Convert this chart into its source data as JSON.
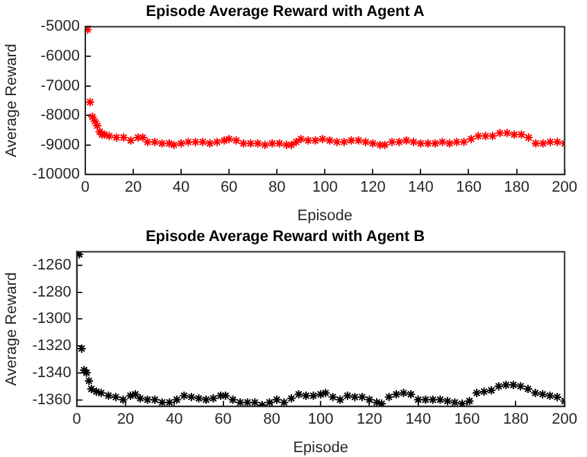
{
  "chart_data": [
    {
      "type": "scatter",
      "title": "Episode Average Reward with Agent A",
      "xlabel": "Episode",
      "ylabel": "Average Reward",
      "xlim": [
        0,
        200
      ],
      "xticks": [
        0,
        20,
        40,
        60,
        80,
        100,
        120,
        140,
        160,
        180,
        200
      ],
      "ylim": [
        -10000,
        -5000
      ],
      "yticks": [
        -10000,
        -9000,
        -8000,
        -7000,
        -6000,
        -5000
      ],
      "grid": false,
      "legend": false,
      "marker": "cross",
      "series": [
        {
          "color": "#ff0000",
          "x": [
            1,
            2,
            3,
            4,
            5,
            6,
            7,
            8,
            10,
            13,
            16,
            19,
            22,
            24,
            26,
            29,
            32,
            35,
            37,
            40,
            43,
            46,
            49,
            52,
            55,
            58,
            60,
            63,
            66,
            69,
            72,
            75,
            78,
            81,
            84,
            86,
            88,
            90,
            93,
            96,
            99,
            102,
            105,
            108,
            111,
            114,
            117,
            120,
            123,
            125,
            128,
            131,
            134,
            137,
            140,
            143,
            146,
            149,
            152,
            155,
            158,
            161,
            164,
            167,
            170,
            173,
            176,
            179,
            182,
            185,
            188,
            191,
            194,
            197,
            200
          ],
          "values": [
            -5100,
            -7550,
            -8050,
            -8200,
            -8350,
            -8550,
            -8650,
            -8650,
            -8700,
            -8750,
            -8750,
            -8850,
            -8750,
            -8750,
            -8900,
            -8900,
            -8950,
            -8950,
            -9000,
            -8950,
            -8900,
            -8900,
            -8900,
            -8950,
            -8900,
            -8850,
            -8800,
            -8850,
            -8950,
            -8950,
            -8950,
            -9000,
            -8950,
            -8950,
            -9000,
            -9000,
            -8900,
            -8800,
            -8850,
            -8850,
            -8800,
            -8850,
            -8900,
            -8900,
            -8850,
            -8850,
            -8900,
            -8950,
            -9000,
            -9000,
            -8900,
            -8900,
            -8850,
            -8900,
            -8950,
            -8950,
            -8950,
            -8900,
            -8950,
            -8900,
            -8900,
            -8800,
            -8700,
            -8700,
            -8700,
            -8600,
            -8600,
            -8650,
            -8650,
            -8750,
            -8950,
            -8950,
            -8900,
            -8900,
            -8950
          ]
        }
      ]
    },
    {
      "type": "scatter",
      "title": "Episode Average Reward with Agent B",
      "xlabel": "Episode",
      "ylabel": "Average Reward",
      "xlim": [
        0,
        200
      ],
      "xticks": [
        0,
        20,
        40,
        60,
        80,
        100,
        120,
        140,
        160,
        180,
        200
      ],
      "ylim": [
        -1365,
        -1250
      ],
      "yticks": [
        -1360,
        -1340,
        -1320,
        -1300,
        -1280,
        -1260
      ],
      "grid": false,
      "legend": false,
      "marker": "cross",
      "series": [
        {
          "color": "#000000",
          "x": [
            1,
            2,
            3,
            4,
            5,
            6,
            8,
            10,
            13,
            16,
            19,
            22,
            24,
            26,
            29,
            32,
            35,
            38,
            41,
            44,
            47,
            50,
            53,
            56,
            59,
            61,
            64,
            67,
            70,
            73,
            76,
            79,
            82,
            85,
            88,
            91,
            94,
            97,
            100,
            102,
            105,
            108,
            111,
            114,
            117,
            120,
            123,
            125,
            128,
            131,
            134,
            137,
            140,
            143,
            146,
            149,
            152,
            155,
            158,
            161,
            164,
            167,
            170,
            173,
            176,
            179,
            182,
            185,
            188,
            191,
            194,
            197,
            200
          ],
          "values": [
            -1252,
            -1322,
            -1338,
            -1340,
            -1346,
            -1352,
            -1354,
            -1355,
            -1357,
            -1358,
            -1360,
            -1357,
            -1356,
            -1359,
            -1360,
            -1360,
            -1362,
            -1362,
            -1360,
            -1357,
            -1358,
            -1359,
            -1360,
            -1359,
            -1357,
            -1357,
            -1360,
            -1362,
            -1362,
            -1362,
            -1364,
            -1362,
            -1360,
            -1362,
            -1359,
            -1356,
            -1357,
            -1357,
            -1356,
            -1355,
            -1358,
            -1360,
            -1357,
            -1358,
            -1358,
            -1360,
            -1362,
            -1363,
            -1358,
            -1356,
            -1355,
            -1356,
            -1360,
            -1360,
            -1360,
            -1360,
            -1361,
            -1362,
            -1363,
            -1361,
            -1355,
            -1354,
            -1353,
            -1350,
            -1349,
            -1349,
            -1350,
            -1352,
            -1355,
            -1356,
            -1357,
            -1358,
            -1361
          ]
        }
      ]
    }
  ]
}
